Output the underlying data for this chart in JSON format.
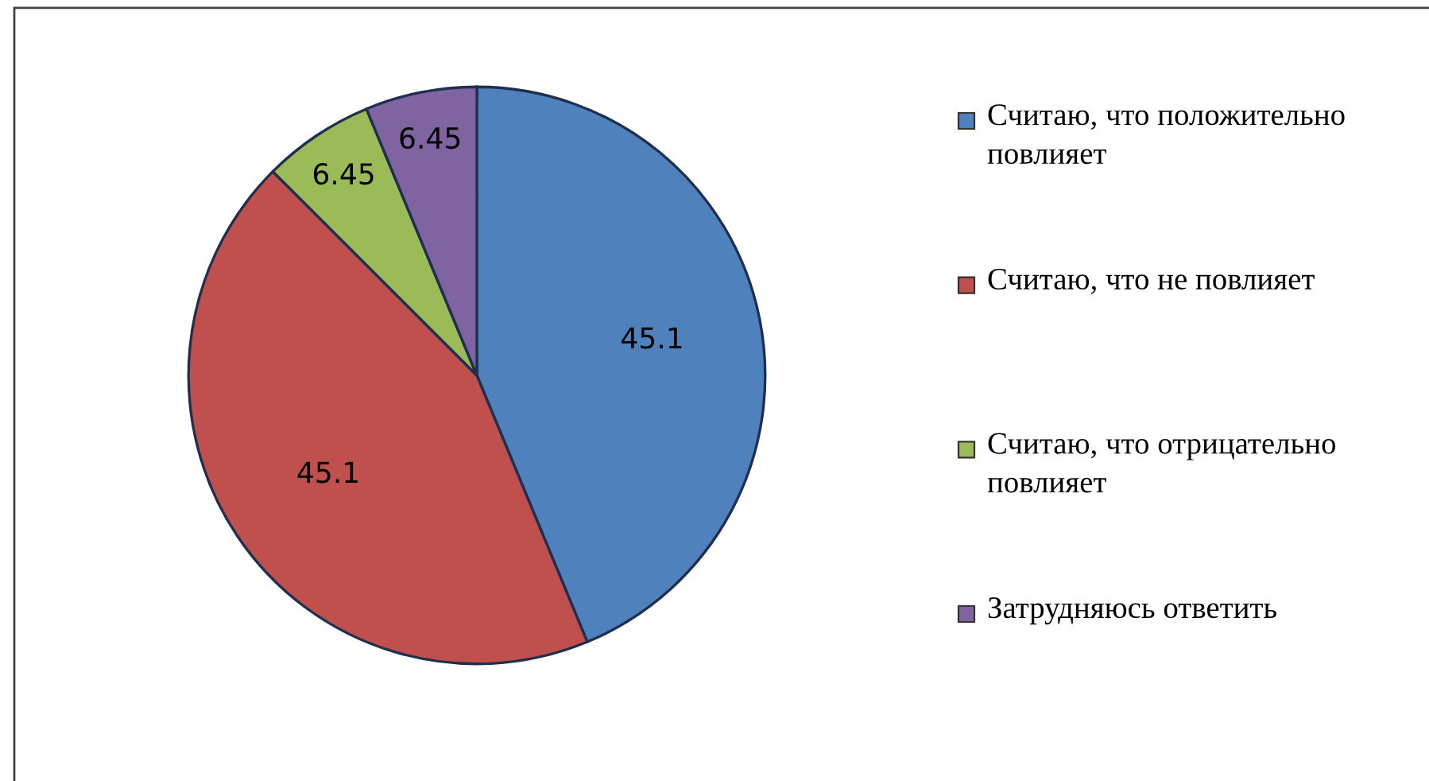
{
  "chart_data": {
    "type": "pie",
    "categories": [
      "Считаю, что положительно повлияет",
      "Считаю, что не повлияет",
      "Считаю, что отрицательно повлияет",
      "Затрудняюсь ответить"
    ],
    "values": [
      45.1,
      45.1,
      6.45,
      6.45
    ],
    "colors": [
      "#4f81bd",
      "#c0504d",
      "#9bbb59",
      "#8064a2"
    ],
    "data_labels": true,
    "legend": "right"
  }
}
